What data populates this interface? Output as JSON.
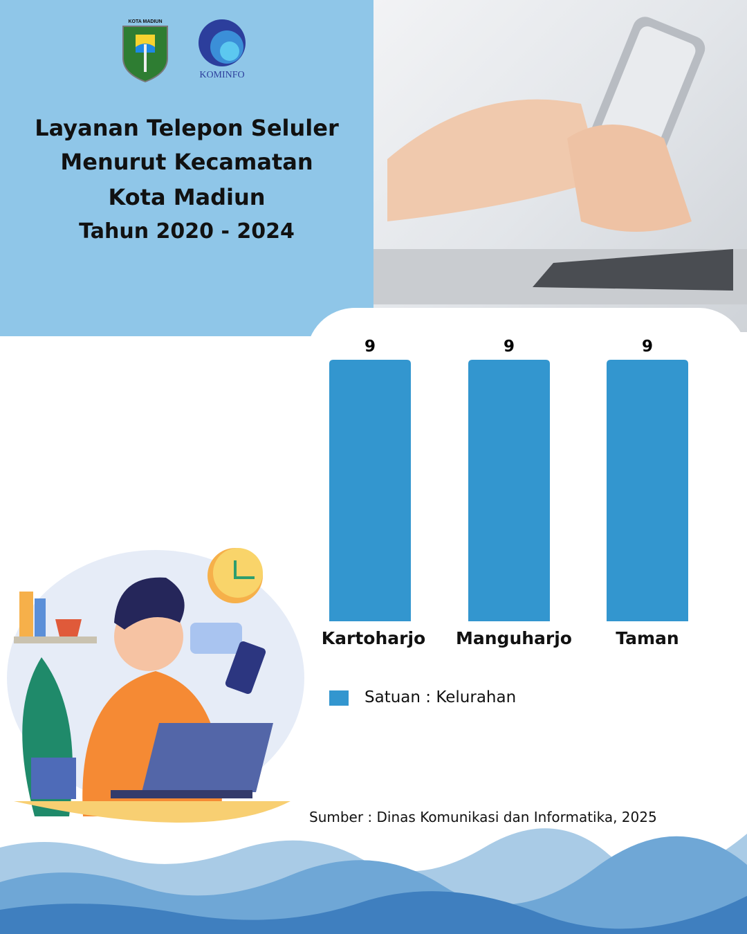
{
  "header": {
    "logos": [
      "KOTA MADIUN",
      "KOMINFO"
    ],
    "title_lines": [
      "Layanan  Telepon Seluler",
      "Menurut Kecamatan",
      "Kota Madiun",
      "Tahun 2020 - 2024"
    ]
  },
  "chart_data": {
    "type": "bar",
    "categories": [
      "Kartoharjo",
      "Manguharjo",
      "Taman"
    ],
    "series": [
      {
        "name": "Satuan : Kelurahan",
        "values": [
          9,
          9,
          9
        ],
        "color": "#3396cf"
      }
    ],
    "data_labels": [
      "9",
      "9",
      "9"
    ],
    "ylim": [
      0,
      9
    ],
    "grid": false,
    "legend": "bottom-left"
  },
  "legend": {
    "label": "Satuan : Kelurahan"
  },
  "source": "Sumber : Dinas Komunikasi dan Informatika, 2025",
  "colors": {
    "panel": "#8fc6e8",
    "bar": "#3396cf"
  }
}
